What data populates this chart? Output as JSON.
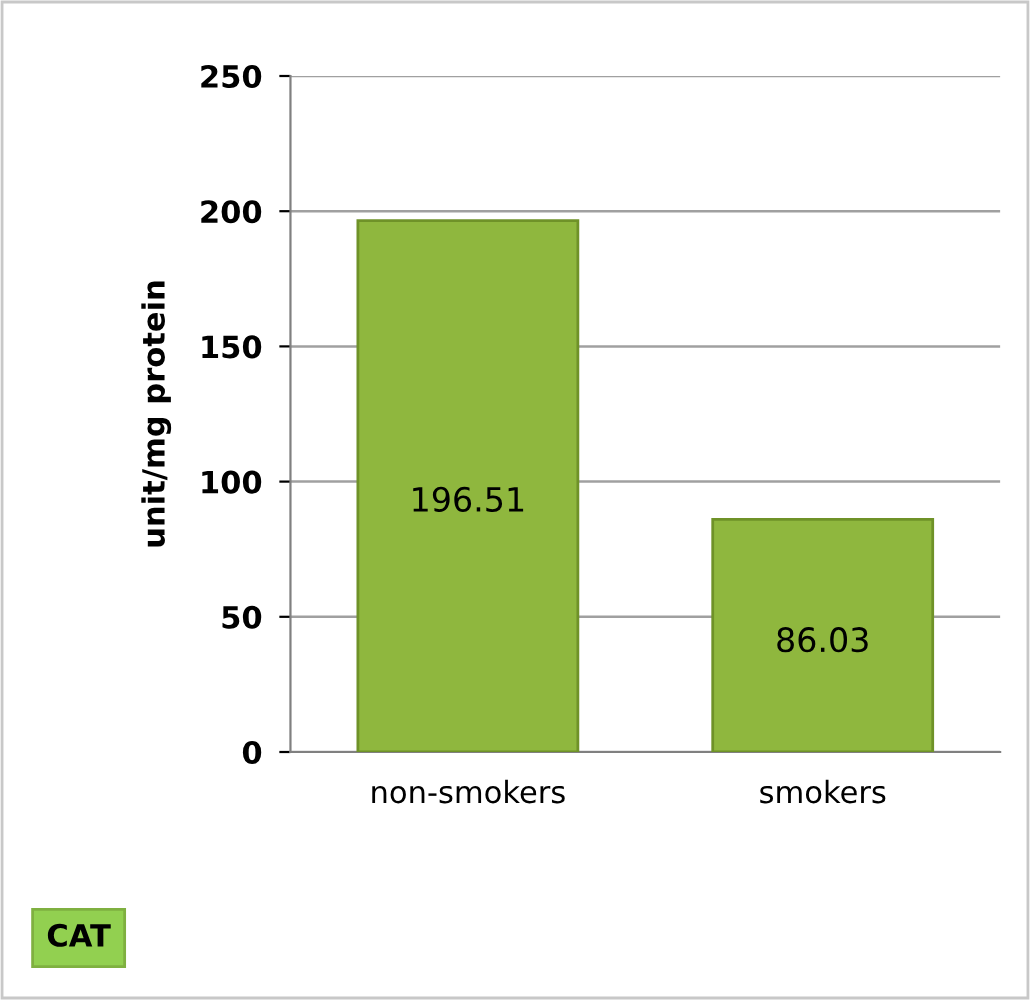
{
  "chart_data": {
    "type": "bar",
    "ylabel": "unit/mg protein",
    "categories": [
      "non-smokers",
      "smokers"
    ],
    "values": [
      196.51,
      86.03
    ],
    "color": "#8fb73e",
    "ylim": [
      0,
      250
    ],
    "yticks": [
      0,
      50,
      100,
      150,
      200,
      250
    ],
    "grid": "y",
    "data_labels": true,
    "annotations": [
      "CAT"
    ]
  }
}
